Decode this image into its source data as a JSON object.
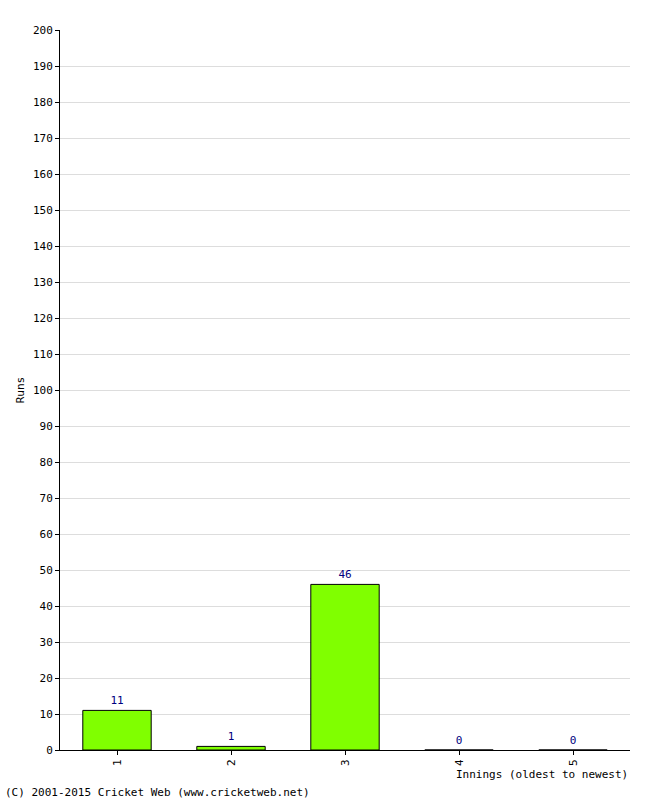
{
  "chart_data": {
    "type": "bar",
    "x_label": "Innings (oldest to newest)",
    "y_label": "Runs",
    "categories": [
      "1",
      "2",
      "3",
      "4",
      "5"
    ],
    "values": [
      11,
      1,
      46,
      0,
      0
    ],
    "color": "#80ff00",
    "ylim": [
      0,
      200
    ],
    "yticks": [
      0,
      10,
      20,
      30,
      40,
      50,
      60,
      70,
      80,
      90,
      100,
      110,
      120,
      130,
      140,
      150,
      160,
      170,
      180,
      190,
      200
    ],
    "grid": true,
    "data_labels": true,
    "annotations": [
      "(C) 2001-2015 Cricket Web (www.cricketweb.net)"
    ]
  }
}
